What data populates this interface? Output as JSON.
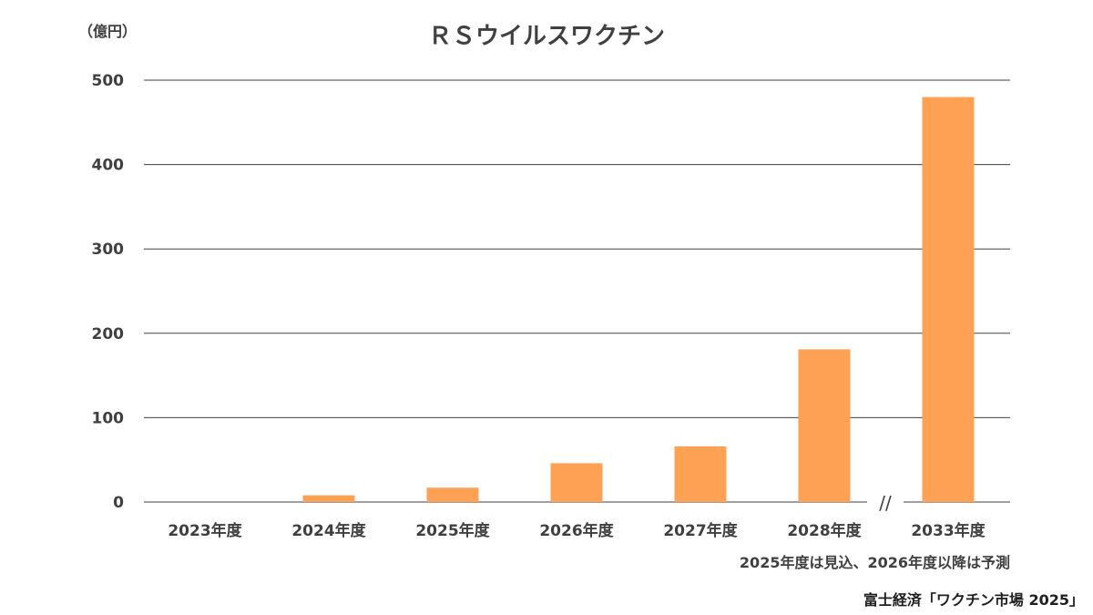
{
  "chart_data": {
    "type": "bar",
    "title": "ＲＳウイルスワクチン",
    "unit_label": "（億円）",
    "categories": [
      "2023年度",
      "2024年度",
      "2025年度",
      "2026年度",
      "2027年度",
      "2028年度",
      "2033年度"
    ],
    "values": [
      0,
      8,
      17,
      46,
      66,
      181,
      480
    ],
    "ylim": [
      0,
      500
    ],
    "yticks": [
      "0",
      "100",
      "200",
      "300",
      "400",
      "500"
    ],
    "ytick_values": [
      0,
      100,
      200,
      300,
      400,
      500
    ],
    "axis_break_between": [
      "2028年度",
      "2033年度"
    ],
    "axis_break_symbol": "//",
    "grid": true,
    "bar_color": "#ffa155",
    "note": "2025年度は見込、2026年度以降は予測",
    "source": "富士経済「ワクチン市場 2025」"
  }
}
